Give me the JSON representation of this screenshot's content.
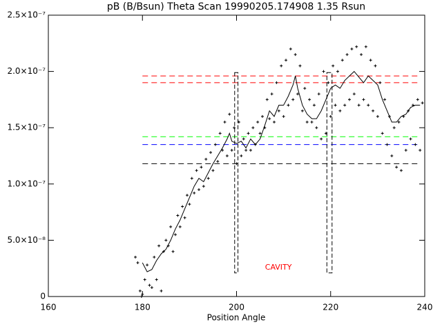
{
  "chart_data": {
    "type": "scatter",
    "title": "pB (B/Bsun) Theta Scan 19990205.174908 1.35 Rsun",
    "x_label": "Position Angle",
    "xlim": [
      160,
      240
    ],
    "xticks": [
      160,
      180,
      200,
      220,
      240
    ],
    "ylim": [
      0,
      2.5e-07
    ],
    "yticks": [
      0,
      {
        "value": 5e-08,
        "label": "5.0×10⁻⁸"
      },
      {
        "value": 1e-07,
        "label": "1.0×10⁻⁷"
      },
      {
        "value": 1.5e-07,
        "label": "1.5×10⁻⁷"
      },
      {
        "value": 2e-07,
        "label": "2.0×10⁻⁷"
      },
      {
        "value": 2.5e-07,
        "label": "2.5×10⁻⁷"
      }
    ],
    "series": [
      {
        "type": "scatter",
        "color": "#000000",
        "x": [
          178.5,
          179,
          179.5,
          179.8,
          180,
          180.5,
          181,
          181.5,
          182,
          182.5,
          183,
          183.5,
          184,
          184.5,
          185,
          185.5,
          186,
          186.5,
          187,
          187.5,
          188,
          188.5,
          189,
          189.5,
          190,
          190.5,
          191,
          191.5,
          192,
          192.5,
          193,
          193.5,
          194,
          194.5,
          195,
          195.5,
          196,
          196.5,
          197,
          197.5,
          198,
          198.5,
          199,
          199.5,
          200,
          200.5,
          201,
          201.5,
          202,
          202.5,
          203,
          203.5,
          204,
          204.5,
          205,
          205.5,
          206,
          206.5,
          207,
          207.5,
          208,
          208.5,
          209,
          209.5,
          210,
          210.5,
          211,
          211.5,
          212,
          212.5,
          213,
          213.5,
          214,
          214.5,
          215,
          215.5,
          216,
          216.5,
          217,
          217.5,
          218,
          218.5,
          219,
          219.5,
          220,
          220.5,
          221,
          221.5,
          222,
          222.5,
          223,
          223.5,
          224,
          224.5,
          225,
          225.5,
          226,
          226.5,
          227,
          227.5,
          228,
          228.5,
          229,
          229.5,
          230,
          230.5,
          231,
          231.5,
          232,
          232.5,
          233,
          233.5,
          234,
          234.5,
          235,
          235.5,
          236,
          236.5,
          237,
          237.5,
          238,
          238.5,
          239,
          239.5
        ],
        "values": [
          3.5e-08,
          3e-08,
          5e-09,
          0,
          2e-09,
          1.5e-08,
          2.8e-08,
          1e-08,
          8e-09,
          3.5e-08,
          1.5e-08,
          4.5e-08,
          5e-09,
          4e-08,
          5e-08,
          4.5e-08,
          6.2e-08,
          4e-08,
          5.5e-08,
          7.2e-08,
          6.2e-08,
          8e-08,
          7e-08,
          9e-08,
          8.2e-08,
          1.05e-07,
          9.2e-08,
          1.12e-07,
          9.5e-08,
          1.15e-07,
          9.8e-08,
          1.22e-07,
          1.05e-07,
          1.28e-07,
          1.12e-07,
          1.35e-07,
          1.2e-07,
          1.45e-07,
          1.3e-07,
          1.55e-07,
          1.25e-07,
          1.62e-07,
          1.3e-07,
          1.5e-07,
          1.18e-07,
          1.55e-07,
          1.25e-07,
          1.4e-07,
          1.3e-07,
          1.45e-07,
          1.3e-07,
          1.5e-07,
          1.35e-07,
          1.55e-07,
          1.45e-07,
          1.6e-07,
          1.5e-07,
          1.75e-07,
          1.58e-07,
          1.8e-07,
          1.55e-07,
          1.9e-07,
          1.65e-07,
          2.05e-07,
          1.6e-07,
          2.1e-07,
          1.7e-07,
          2.2e-07,
          1.75e-07,
          2.15e-07,
          1.8e-07,
          2.05e-07,
          1.65e-07,
          1.85e-07,
          1.55e-07,
          1.75e-07,
          1.55e-07,
          1.7e-07,
          1.5e-07,
          1.8e-07,
          1.4e-07,
          2e-07,
          1.45e-07,
          1.9e-07,
          1.6e-07,
          2.05e-07,
          1.7e-07,
          2e-07,
          1.65e-07,
          2.1e-07,
          1.7e-07,
          2.15e-07,
          1.75e-07,
          2.2e-07,
          1.8e-07,
          2.22e-07,
          1.7e-07,
          2.15e-07,
          1.75e-07,
          2.22e-07,
          1.7e-07,
          2.1e-07,
          1.65e-07,
          2.05e-07,
          1.6e-07,
          1.9e-07,
          1.45e-07,
          1.75e-07,
          1.35e-07,
          1.6e-07,
          1.25e-07,
          1.5e-07,
          1.15e-07,
          1.55e-07,
          1.12e-07,
          1.6e-07,
          1.3e-07,
          1.65e-07,
          1.4e-07,
          1.7e-07,
          1.35e-07,
          1.75e-07,
          1.3e-07,
          1.72e-07
        ]
      },
      {
        "type": "line",
        "color": "#000000",
        "x": [
          180,
          181,
          182,
          183,
          184,
          185,
          186,
          187,
          188,
          189,
          190,
          191,
          192,
          193,
          194,
          195,
          196,
          197,
          198,
          198.5,
          199,
          200,
          201,
          202,
          203,
          204,
          205,
          206,
          207,
          208,
          209,
          210,
          211,
          212,
          212.5,
          213,
          214,
          215,
          216,
          217,
          218,
          219,
          220,
          221,
          222,
          223,
          224,
          225,
          226,
          227,
          228,
          229,
          230,
          231,
          232,
          233,
          234,
          235,
          236,
          237,
          238,
          239
        ],
        "values": [
          3e-08,
          2.2e-08,
          2.4e-08,
          3.2e-08,
          3.8e-08,
          4.2e-08,
          5e-08,
          6e-08,
          6.8e-08,
          7.8e-08,
          8.8e-08,
          9.8e-08,
          1.05e-07,
          1.02e-07,
          1.1e-07,
          1.18e-07,
          1.25e-07,
          1.32e-07,
          1.4e-07,
          1.45e-07,
          1.38e-07,
          1.36e-07,
          1.38e-07,
          1.32e-07,
          1.4e-07,
          1.35e-07,
          1.4e-07,
          1.52e-07,
          1.65e-07,
          1.6e-07,
          1.7e-07,
          1.7e-07,
          1.78e-07,
          1.88e-07,
          1.96e-07,
          1.85e-07,
          1.7e-07,
          1.62e-07,
          1.58e-07,
          1.58e-07,
          1.65e-07,
          1.75e-07,
          1.85e-07,
          1.88e-07,
          1.85e-07,
          1.92e-07,
          1.96e-07,
          2e-07,
          1.95e-07,
          1.9e-07,
          1.96e-07,
          1.92e-07,
          1.88e-07,
          1.75e-07,
          1.65e-07,
          1.55e-07,
          1.55e-07,
          1.6e-07,
          1.62e-07,
          1.68e-07,
          1.7e-07,
          1.7e-07
        ]
      }
    ],
    "hlines": [
      {
        "value": 1.96e-07,
        "color": "#ff0000",
        "x": [
          180,
          239
        ]
      },
      {
        "value": 1.9e-07,
        "color": "#ff0000",
        "x": [
          180,
          239
        ]
      },
      {
        "value": 1.42e-07,
        "color": "#00ff00",
        "x": [
          180,
          239
        ]
      },
      {
        "value": 1.35e-07,
        "color": "#0000ff",
        "x": [
          180,
          239
        ]
      },
      {
        "value": 1.18e-07,
        "color": "#000000",
        "x": [
          180,
          239
        ]
      }
    ],
    "regions": [
      {
        "x": [
          199.6,
          200.3
        ],
        "y": [
          2.1e-08,
          1.99e-07
        ],
        "color": "#000000"
      },
      {
        "x": [
          219.2,
          220.3
        ],
        "y": [
          2.1e-08,
          1.99e-07
        ],
        "color": "#000000"
      }
    ],
    "annotation": {
      "text": "CAVITY",
      "x": 208.9,
      "y": 2.57e-08,
      "color": "#ff0000"
    }
  }
}
